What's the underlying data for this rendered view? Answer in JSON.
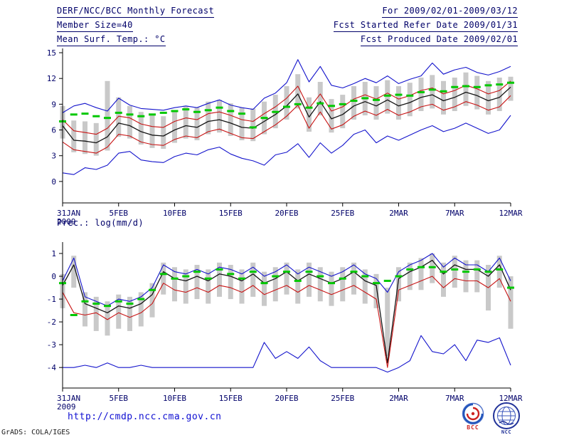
{
  "header": {
    "title": "DERF/NCC/BCC Monthly Forecast",
    "member_size": "Member Size=40",
    "variable_label": "Mean Surf. Temp.: °C",
    "forecast_period": "For 2009/02/01-2009/03/12",
    "refer_date": "Fcst Started Refer Date 2009/01/31",
    "produced_date": "Fcst Produced Date 2009/02/01"
  },
  "footer": {
    "url": "http://cmdp.ncc.cma.gov.cn",
    "credit": "GrADS: COLA/IGES",
    "logos": [
      {
        "name": "bcc-logo",
        "label": "BCC"
      },
      {
        "name": "ncc-logo",
        "label": "NCC"
      }
    ]
  },
  "colors": {
    "line_blue": "#1414cc",
    "line_red": "#c81414",
    "line_black": "#141414",
    "marker_green": "#00c800",
    "bar_gray": "#c9c9c9",
    "axis": "#000000",
    "text": "#000069",
    "url_blue": "#0f0fd2",
    "logo_red": "#cc2222",
    "logo_blue": "#223399"
  },
  "chart_data": [
    {
      "type": "line",
      "title": "Mean Surf. Temp.: °C",
      "ylabel": "°C",
      "ylim": [
        -2.5,
        15.5
      ],
      "y_ticks": [
        0,
        3,
        6,
        9,
        12,
        15
      ],
      "x": [
        "31JAN",
        "1FEB",
        "2FEB",
        "3FEB",
        "4FEB",
        "5FEB",
        "6FEB",
        "7FEB",
        "8FEB",
        "9FEB",
        "10FEB",
        "11FEB",
        "12FEB",
        "13FEB",
        "14FEB",
        "15FEB",
        "16FEB",
        "17FEB",
        "18FEB",
        "19FEB",
        "20FEB",
        "21FEB",
        "22FEB",
        "23FEB",
        "24FEB",
        "25FEB",
        "26FEB",
        "27FEB",
        "28FEB",
        "1MAR",
        "2MAR",
        "3MAR",
        "4MAR",
        "5MAR",
        "6MAR",
        "7MAR",
        "8MAR",
        "9MAR",
        "10MAR",
        "11MAR",
        "12MAR"
      ],
      "x_ticks": [
        {
          "i": 0,
          "label": "31JAN",
          "sub": "2009"
        },
        {
          "i": 5,
          "label": "5FEB"
        },
        {
          "i": 10,
          "label": "10FEB"
        },
        {
          "i": 15,
          "label": "15FEB"
        },
        {
          "i": 20,
          "label": "20FEB"
        },
        {
          "i": 25,
          "label": "25FEB"
        },
        {
          "i": 30,
          "label": "2MAR"
        },
        {
          "i": 35,
          "label": "7MAR"
        },
        {
          "i": 40,
          "label": "12MAR"
        }
      ],
      "series": [
        {
          "name": "ensemble-max",
          "color": "line_blue",
          "values": [
            8.0,
            8.8,
            9.1,
            8.6,
            8.2,
            9.7,
            8.9,
            8.5,
            8.4,
            8.3,
            8.6,
            8.8,
            8.6,
            9.1,
            9.5,
            8.9,
            8.6,
            8.4,
            9.7,
            10.3,
            11.5,
            14.2,
            11.6,
            13.4,
            11.2,
            10.9,
            11.4,
            12.0,
            11.5,
            12.3,
            11.4,
            11.9,
            12.3,
            13.8,
            12.5,
            13.0,
            13.3,
            12.7,
            12.4,
            12.8,
            13.4
          ]
        },
        {
          "name": "upper-bound",
          "color": "line_red",
          "values": [
            7.2,
            5.9,
            5.7,
            5.5,
            6.2,
            7.6,
            7.4,
            6.7,
            6.4,
            6.3,
            7.0,
            7.4,
            7.2,
            7.9,
            8.1,
            7.7,
            7.2,
            7.0,
            7.9,
            8.7,
            9.7,
            11.1,
            8.5,
            10.2,
            8.2,
            8.7,
            9.6,
            10.1,
            9.6,
            10.3,
            9.6,
            10.0,
            10.6,
            10.9,
            10.2,
            10.6,
            11.2,
            10.8,
            10.2,
            10.6,
            11.7
          ]
        },
        {
          "name": "ensemble-mean",
          "color": "line_black",
          "values": [
            6.5,
            4.8,
            4.7,
            4.5,
            5.2,
            6.8,
            6.5,
            5.8,
            5.4,
            5.3,
            6.0,
            6.5,
            6.3,
            7.0,
            7.2,
            6.8,
            6.3,
            6.2,
            7.0,
            7.8,
            8.8,
            10.2,
            7.5,
            9.3,
            7.3,
            7.8,
            8.8,
            9.3,
            8.8,
            9.5,
            8.8,
            9.2,
            9.8,
            10.1,
            9.4,
            9.8,
            10.4,
            10.0,
            9.4,
            9.8,
            11.0
          ]
        },
        {
          "name": "lower-bound",
          "color": "line_red",
          "values": [
            4.6,
            3.7,
            3.5,
            3.3,
            4.0,
            5.5,
            5.3,
            4.6,
            4.3,
            4.2,
            4.9,
            5.3,
            5.1,
            5.8,
            6.1,
            5.6,
            5.1,
            5.0,
            5.8,
            6.6,
            7.6,
            8.9,
            6.2,
            8.1,
            6.1,
            6.6,
            7.6,
            8.2,
            7.7,
            8.4,
            7.7,
            8.1,
            8.7,
            9.0,
            8.3,
            8.7,
            9.3,
            8.9,
            8.3,
            8.7,
            10.0
          ]
        },
        {
          "name": "ensemble-min",
          "color": "line_blue",
          "values": [
            1.0,
            0.8,
            1.6,
            1.4,
            1.9,
            3.3,
            3.5,
            2.5,
            2.3,
            2.2,
            2.9,
            3.3,
            3.1,
            3.7,
            4.0,
            3.2,
            2.7,
            2.4,
            1.9,
            3.1,
            3.4,
            4.4,
            2.8,
            4.5,
            3.3,
            4.2,
            5.5,
            6.0,
            4.5,
            5.3,
            4.8,
            5.4,
            6.0,
            6.5,
            5.8,
            6.2,
            6.8,
            6.2,
            5.6,
            6.0,
            7.7
          ]
        }
      ],
      "spread_bars": {
        "name": "member-spread-bar",
        "color": "bar_gray",
        "low": [
          5.0,
          3.4,
          3.2,
          3.0,
          3.6,
          5.2,
          5.0,
          4.3,
          3.9,
          3.8,
          4.5,
          5.0,
          4.8,
          5.5,
          5.7,
          5.3,
          4.8,
          4.7,
          5.5,
          6.2,
          7.2,
          8.5,
          5.8,
          7.7,
          5.7,
          6.2,
          7.2,
          7.7,
          7.2,
          7.9,
          7.2,
          7.6,
          8.2,
          8.5,
          7.8,
          8.2,
          8.8,
          8.4,
          7.8,
          8.2,
          9.4
        ],
        "high": [
          8.8,
          7.1,
          7.0,
          6.8,
          11.7,
          9.8,
          8.8,
          8.1,
          7.7,
          7.6,
          8.3,
          8.8,
          8.6,
          9.3,
          9.5,
          9.1,
          8.6,
          8.5,
          9.3,
          10.1,
          11.1,
          12.5,
          9.8,
          11.6,
          9.6,
          10.1,
          11.1,
          11.6,
          11.1,
          11.8,
          11.1,
          11.5,
          12.1,
          12.4,
          11.7,
          12.1,
          12.7,
          12.3,
          11.7,
          12.1,
          12.2
        ]
      },
      "markers": {
        "name": "observation-dash",
        "style": "dash",
        "color": "marker_green",
        "values": [
          7.0,
          7.8,
          7.9,
          7.6,
          7.4,
          8.0,
          7.8,
          7.6,
          7.8,
          8.0,
          8.2,
          8.4,
          8.1,
          8.3,
          8.6,
          8.2,
          7.9,
          6.3,
          7.4,
          8.1,
          8.7,
          9.0,
          8.6,
          9.1,
          8.8,
          9.0,
          9.4,
          9.7,
          9.5,
          10.0,
          10.1,
          10.0,
          10.4,
          10.7,
          10.5,
          11.0,
          11.1,
          11.0,
          11.2,
          11.3,
          11.5
        ]
      }
    },
    {
      "type": "line",
      "title": "Prec.: log(mm/d)",
      "ylabel": "log(mm/d)",
      "ylim": [
        -4.9,
        1.5
      ],
      "y_ticks": [
        1,
        0,
        -1,
        -2,
        -3,
        -4
      ],
      "x": [
        "31JAN",
        "1FEB",
        "2FEB",
        "3FEB",
        "4FEB",
        "5FEB",
        "6FEB",
        "7FEB",
        "8FEB",
        "9FEB",
        "10FEB",
        "11FEB",
        "12FEB",
        "13FEB",
        "14FEB",
        "15FEB",
        "16FEB",
        "17FEB",
        "18FEB",
        "19FEB",
        "20FEB",
        "21FEB",
        "22FEB",
        "23FEB",
        "24FEB",
        "25FEB",
        "26FEB",
        "27FEB",
        "28FEB",
        "1MAR",
        "2MAR",
        "3MAR",
        "4MAR",
        "5MAR",
        "6MAR",
        "7MAR",
        "8MAR",
        "9MAR",
        "10MAR",
        "11MAR",
        "12MAR"
      ],
      "x_ticks": [
        {
          "i": 0,
          "label": "31JAN",
          "sub": "2009"
        },
        {
          "i": 5,
          "label": "5FEB"
        },
        {
          "i": 10,
          "label": "10FEB"
        },
        {
          "i": 15,
          "label": "15FEB"
        },
        {
          "i": 20,
          "label": "20FEB"
        },
        {
          "i": 25,
          "label": "25FEB"
        },
        {
          "i": 30,
          "label": "2MAR"
        },
        {
          "i": 35,
          "label": "7MAR"
        },
        {
          "i": 40,
          "label": "12MAR"
        }
      ],
      "series": [
        {
          "name": "ensemble-max",
          "color": "line_blue",
          "values": [
            -0.2,
            0.8,
            -0.9,
            -1.1,
            -1.3,
            -1.0,
            -1.1,
            -0.9,
            -0.5,
            0.5,
            0.2,
            0.1,
            0.3,
            0.1,
            0.4,
            0.3,
            0.1,
            0.4,
            0.0,
            0.2,
            0.5,
            0.1,
            0.4,
            0.2,
            0.0,
            0.2,
            0.5,
            0.1,
            -0.1,
            -0.7,
            0.2,
            0.5,
            0.7,
            1.0,
            0.4,
            0.8,
            0.5,
            0.5,
            0.2,
            0.8,
            -0.2
          ]
        },
        {
          "name": "ensemble-mean",
          "color": "line_black",
          "values": [
            -0.4,
            0.5,
            -1.2,
            -1.4,
            -1.6,
            -1.3,
            -1.4,
            -1.2,
            -0.8,
            0.2,
            -0.1,
            -0.2,
            0.0,
            -0.2,
            0.1,
            0.0,
            -0.2,
            0.1,
            -0.3,
            -0.1,
            0.2,
            -0.2,
            0.1,
            -0.1,
            -0.3,
            -0.1,
            0.2,
            -0.2,
            -0.4,
            -3.8,
            -0.1,
            0.2,
            0.4,
            0.7,
            0.1,
            0.5,
            0.3,
            0.3,
            0.0,
            0.5,
            -0.6
          ]
        },
        {
          "name": "lower-bound",
          "color": "line_red",
          "values": [
            -0.7,
            -1.6,
            -1.7,
            -1.6,
            -1.9,
            -1.6,
            -1.8,
            -1.6,
            -1.2,
            -0.3,
            -0.6,
            -0.7,
            -0.5,
            -0.7,
            -0.4,
            -0.5,
            -0.7,
            -0.4,
            -0.8,
            -0.6,
            -0.4,
            -0.7,
            -0.4,
            -0.6,
            -0.8,
            -0.6,
            -0.4,
            -0.7,
            -1.0,
            -4.0,
            -0.6,
            -0.4,
            -0.2,
            0.0,
            -0.5,
            -0.1,
            -0.2,
            -0.2,
            -0.5,
            -0.1,
            -1.1
          ]
        },
        {
          "name": "ensemble-min",
          "color": "line_blue",
          "values": [
            -4.0,
            -4.0,
            -3.9,
            -4.0,
            -3.8,
            -4.0,
            -4.0,
            -3.9,
            -4.0,
            -4.0,
            -4.0,
            -4.0,
            -4.0,
            -4.0,
            -4.0,
            -4.0,
            -4.0,
            -4.0,
            -2.9,
            -3.6,
            -3.3,
            -3.6,
            -3.1,
            -3.7,
            -4.0,
            -4.0,
            -4.0,
            -4.0,
            -4.0,
            -4.2,
            -4.0,
            -3.7,
            -2.6,
            -3.3,
            -3.4,
            -3.0,
            -3.7,
            -2.8,
            -2.9,
            -2.7,
            -3.9
          ]
        }
      ],
      "spread_bars": {
        "name": "member-spread-bar",
        "color": "bar_gray",
        "low": [
          -1.4,
          -0.5,
          -2.2,
          -2.4,
          -2.6,
          -2.3,
          -2.4,
          -2.2,
          -1.8,
          -0.8,
          -1.1,
          -1.2,
          -1.0,
          -1.2,
          -0.9,
          -1.0,
          -1.2,
          -0.9,
          -1.3,
          -1.1,
          -0.8,
          -1.2,
          -0.9,
          -1.1,
          -1.3,
          -1.1,
          -0.8,
          -1.2,
          -1.4,
          -3.5,
          -1.1,
          -0.6,
          -0.6,
          -0.3,
          -0.9,
          -0.5,
          -0.7,
          -0.7,
          -1.5,
          -0.5,
          -2.3
        ],
        "high": [
          0.1,
          0.9,
          -0.7,
          -0.9,
          -1.1,
          -0.8,
          -0.9,
          -0.7,
          -0.3,
          0.6,
          0.4,
          0.3,
          0.5,
          0.3,
          0.6,
          0.5,
          0.3,
          0.6,
          0.2,
          0.4,
          0.6,
          0.3,
          0.6,
          0.4,
          0.2,
          0.4,
          0.6,
          0.3,
          0.1,
          -0.5,
          0.4,
          0.6,
          0.8,
          1.0,
          0.6,
          0.9,
          0.7,
          0.7,
          0.5,
          0.9,
          0.0
        ]
      },
      "markers": {
        "name": "observation-dash",
        "style": "dash",
        "color": "marker_green",
        "values": [
          -0.3,
          -1.7,
          -1.1,
          -1.2,
          -1.3,
          -1.1,
          -1.2,
          -1.0,
          -0.6,
          0.1,
          -0.1,
          0.0,
          0.2,
          -0.1,
          0.3,
          0.1,
          -0.1,
          0.2,
          -0.3,
          0.0,
          0.2,
          -0.2,
          0.2,
          0.0,
          -0.3,
          -0.1,
          0.2,
          0.0,
          -0.3,
          -0.2,
          0.0,
          0.3,
          0.4,
          0.4,
          0.2,
          0.3,
          0.2,
          0.3,
          0.2,
          0.3,
          -0.5
        ]
      }
    }
  ]
}
